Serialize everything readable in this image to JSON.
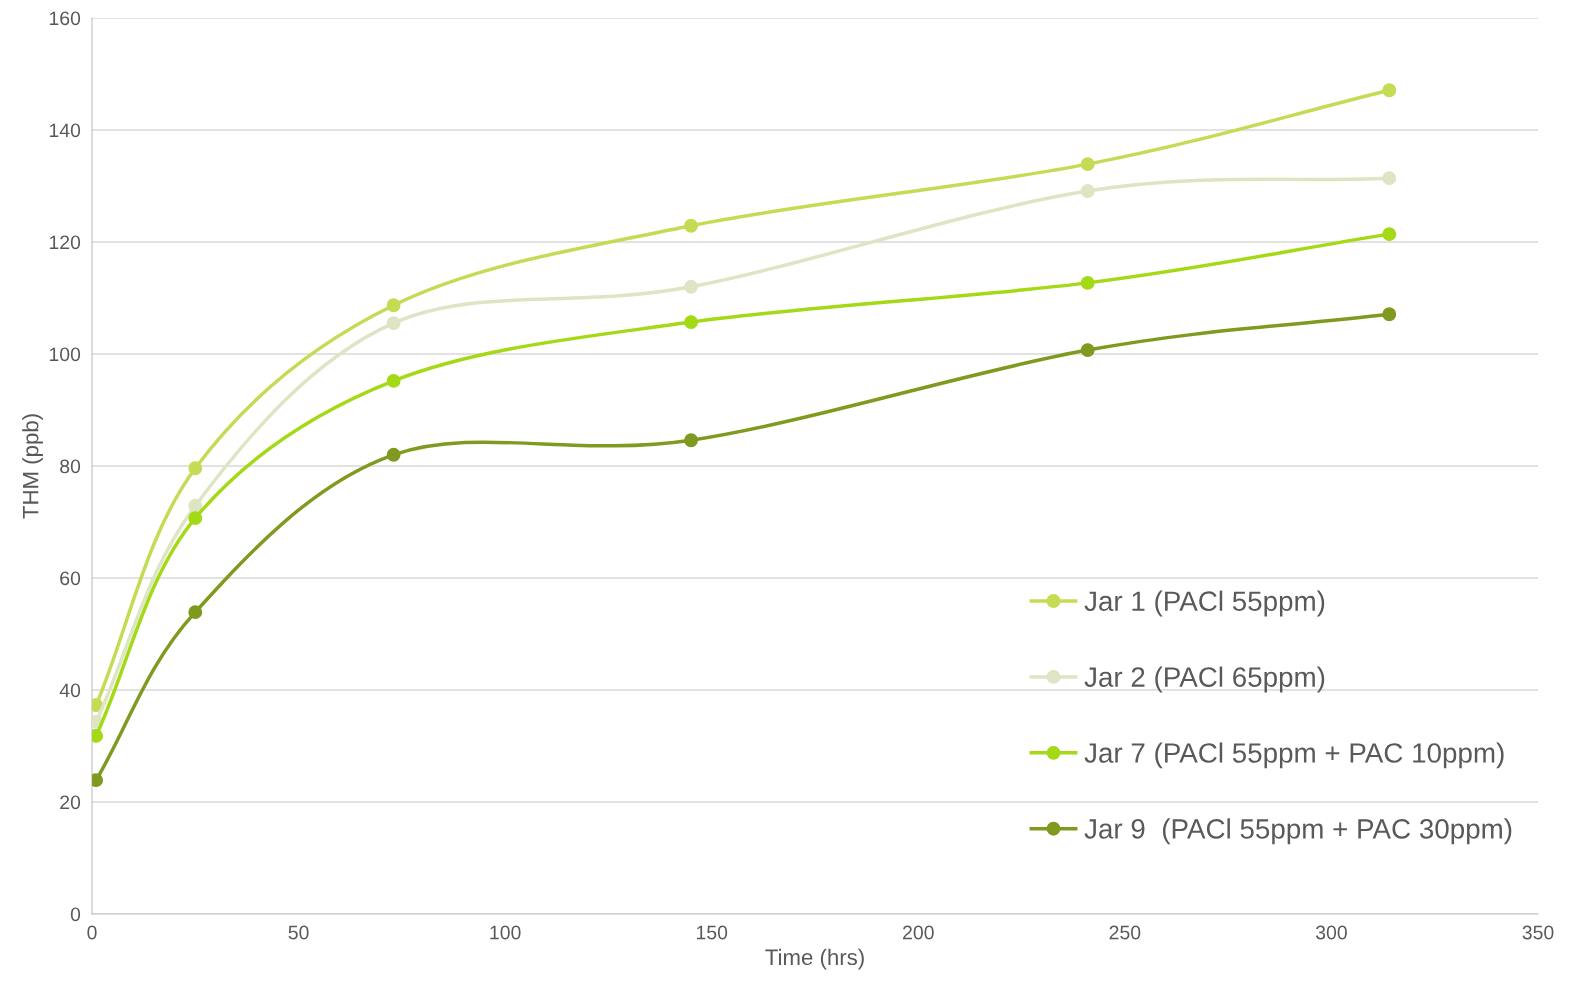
{
  "chart_data": {
    "type": "line",
    "xlabel": "Time (hrs)",
    "ylabel": "THM (ppb)",
    "xlim": [
      0,
      350
    ],
    "xticks": [
      0,
      50,
      100,
      150,
      200,
      250,
      300,
      350
    ],
    "ylim": [
      0,
      160
    ],
    "yticks": [
      0,
      20,
      40,
      60,
      80,
      100,
      120,
      140,
      160
    ],
    "grid": "y",
    "legend": "lower right",
    "marker": "circle",
    "line_style": "solid",
    "x": [
      1,
      25,
      73,
      145,
      241,
      314
    ],
    "series": [
      {
        "name": "Jar 1 (PACl 55ppm)",
        "color": "#c3dc54",
        "values": [
          37.3,
          79.6,
          108.7,
          122.9,
          133.9,
          147.1
        ]
      },
      {
        "name": "Jar 2 (PACl 65ppm)",
        "color": "#dde5c4",
        "values": [
          34.3,
          72.9,
          105.5,
          112,
          129.1,
          131.4
        ]
      },
      {
        "name": "Jar 7 (PACl 55ppm + PAC 10ppm)",
        "color": "#a4d916",
        "values": [
          31.8,
          70.7,
          95.2,
          105.7,
          112.7,
          121.4
        ]
      },
      {
        "name": "Jar 9  (PACl 55ppm + PAC 30ppm)",
        "color": "#7f9a1f",
        "values": [
          23.9,
          53.9,
          82,
          84.6,
          100.7,
          107.1
        ]
      }
    ]
  }
}
